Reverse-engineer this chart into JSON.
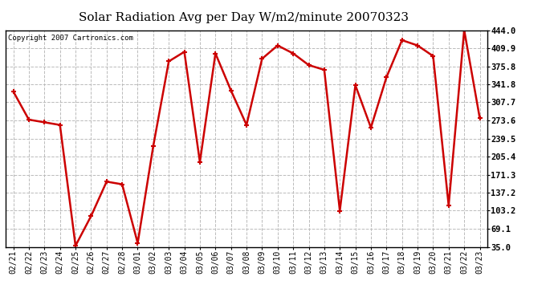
{
  "title": "Solar Radiation Avg per Day W/m2/minute 20070323",
  "copyright": "Copyright 2007 Cartronics.com",
  "dates": [
    "02/21",
    "02/22",
    "02/23",
    "02/24",
    "02/25",
    "02/26",
    "02/27",
    "02/28",
    "03/01",
    "03/02",
    "03/03",
    "03/04",
    "03/05",
    "03/06",
    "03/07",
    "03/08",
    "03/09",
    "03/10",
    "03/11",
    "03/12",
    "03/13",
    "03/14",
    "03/15",
    "03/16",
    "03/17",
    "03/18",
    "03/19",
    "03/20",
    "03/21",
    "03/22",
    "03/23"
  ],
  "values": [
    328,
    275,
    270,
    265,
    37,
    93,
    158,
    153,
    42,
    225,
    385,
    403,
    195,
    400,
    330,
    265,
    390,
    415,
    400,
    378,
    369,
    103,
    340,
    260,
    355,
    425,
    415,
    395,
    113,
    444,
    278
  ],
  "line_color": "#cc0000",
  "marker": "+",
  "marker_color": "#cc0000",
  "marker_size": 5,
  "line_width": 1.8,
  "background_color": "#ffffff",
  "plot_bg_color": "#ffffff",
  "grid_color": "#bbbbbb",
  "grid_linestyle": "--",
  "yticks": [
    35.0,
    69.1,
    103.2,
    137.2,
    171.3,
    205.4,
    239.5,
    273.6,
    307.7,
    341.8,
    375.8,
    409.9,
    444.0
  ],
  "ylim_min": 35.0,
  "ylim_max": 444.0,
  "title_fontsize": 11,
  "copyright_fontsize": 6.5,
  "tick_fontsize": 7,
  "ytick_fontsize": 7.5,
  "outer_border_color": "#000000"
}
